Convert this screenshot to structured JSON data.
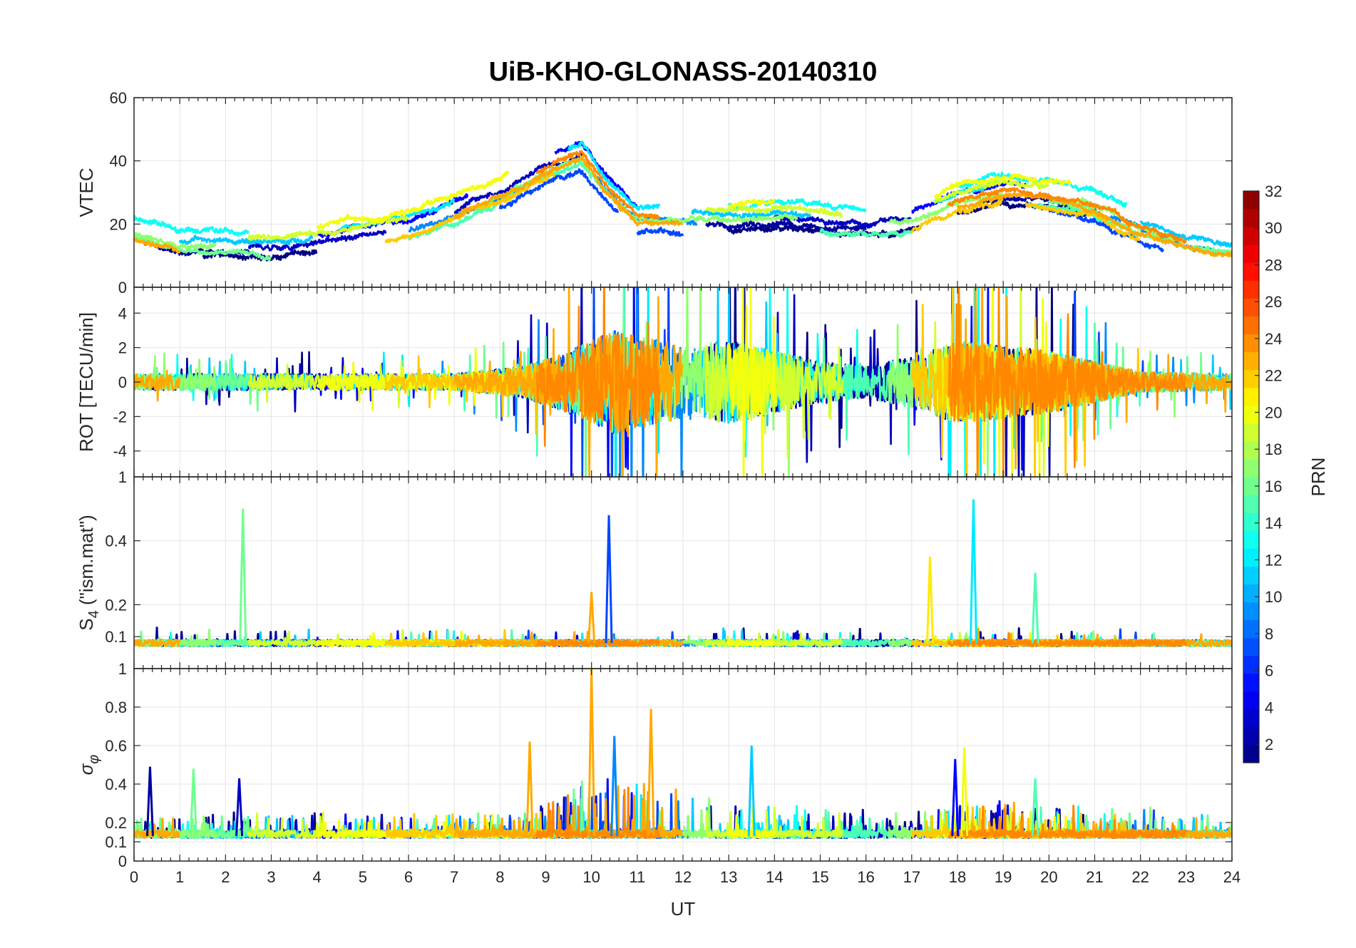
{
  "chart_data": {
    "type": "line",
    "title": "UiB-KHO-GLONASS-20140310",
    "xlabel": "UT",
    "xlim": [
      0,
      24
    ],
    "xticks": [
      "0",
      "1",
      "2",
      "3",
      "4",
      "5",
      "6",
      "7",
      "8",
      "9",
      "10",
      "11",
      "12",
      "13",
      "14",
      "15",
      "16",
      "17",
      "18",
      "19",
      "20",
      "21",
      "22",
      "23",
      "24"
    ],
    "grid": true,
    "panels": [
      {
        "ylabel": "VTEC",
        "ylim": [
          0,
          60
        ],
        "yticks": [
          {
            "v": 20,
            "label": "20"
          },
          {
            "v": 40,
            "label": "40"
          },
          {
            "v": 60,
            "label": "60"
          }
        ],
        "base": [
          [
            0,
            17
          ],
          [
            1,
            13
          ],
          [
            2,
            13
          ],
          [
            3,
            12
          ],
          [
            4,
            14
          ],
          [
            5,
            16
          ],
          [
            6,
            19
          ],
          [
            7,
            24
          ],
          [
            8,
            30
          ],
          [
            9,
            38
          ],
          [
            9.8,
            42
          ],
          [
            10.3,
            32
          ],
          [
            11,
            22
          ],
          [
            12,
            22
          ],
          [
            13,
            21
          ],
          [
            14,
            22
          ],
          [
            15,
            21
          ],
          [
            16,
            20
          ],
          [
            17,
            21
          ],
          [
            18,
            27
          ],
          [
            19,
            30
          ],
          [
            20,
            29
          ],
          [
            21,
            26
          ],
          [
            22,
            19
          ],
          [
            23,
            14
          ],
          [
            24,
            12
          ]
        ],
        "noise": 1.2
      },
      {
        "ylabel": "ROT [TECU/min]",
        "ylim": [
          -5.5,
          5.5
        ],
        "yticks": [
          {
            "v": -4,
            "label": "-4"
          },
          {
            "v": -2,
            "label": "-2"
          },
          {
            "v": 0,
            "label": "0"
          },
          {
            "v": 2,
            "label": "2"
          },
          {
            "v": 4,
            "label": "4"
          }
        ],
        "top_label": "0",
        "base": [
          [
            0,
            0
          ],
          [
            24,
            0
          ]
        ],
        "envelope": [
          [
            0,
            0.8
          ],
          [
            7,
            0.8
          ],
          [
            8.5,
            1.5
          ],
          [
            9.5,
            3
          ],
          [
            10.5,
            5
          ],
          [
            12,
            3.5
          ],
          [
            13,
            4
          ],
          [
            14,
            3
          ],
          [
            15,
            2
          ],
          [
            16,
            1.5
          ],
          [
            17,
            2.5
          ],
          [
            18,
            4
          ],
          [
            19,
            3.5
          ],
          [
            20,
            3
          ],
          [
            21,
            2
          ],
          [
            22,
            1
          ],
          [
            24,
            0.8
          ]
        ]
      },
      {
        "ylabel": "S4 (\"ism.mat\")",
        "ylim": [
          0,
          0.6
        ],
        "yticks": [
          {
            "v": 0.1,
            "label": "0.1"
          },
          {
            "v": 0.2,
            "label": "0.2"
          },
          {
            "v": 0.4,
            "label": "0.4"
          }
        ],
        "top_label": "1",
        "base": [
          [
            0,
            0.07
          ],
          [
            24,
            0.07
          ]
        ],
        "noise": 0.02,
        "spikes": [
          [
            2.38,
            0.5,
            16
          ],
          [
            10.38,
            0.48,
            7
          ],
          [
            18.35,
            0.53,
            12
          ],
          [
            17.4,
            0.35,
            21
          ],
          [
            10,
            0.24,
            23
          ],
          [
            19.7,
            0.3,
            15
          ]
        ]
      },
      {
        "ylabel": "σ_φ",
        "ylim": [
          0,
          1
        ],
        "yticks": [
          {
            "v": 0,
            "label": "0"
          },
          {
            "v": 0.1,
            "label": "0.1"
          },
          {
            "v": 0.2,
            "label": "0.2"
          },
          {
            "v": 0.4,
            "label": "0.4"
          },
          {
            "v": 0.6,
            "label": "0.6"
          },
          {
            "v": 0.8,
            "label": "0.8"
          }
        ],
        "top_label": "1",
        "base": [
          [
            0,
            0.12
          ],
          [
            24,
            0.12
          ]
        ],
        "noise": 0.04,
        "spikes": [
          [
            0.35,
            0.49,
            2
          ],
          [
            1.3,
            0.48,
            16
          ],
          [
            2.3,
            0.43,
            3
          ],
          [
            8.65,
            0.62,
            23
          ],
          [
            10,
            1.0,
            23
          ],
          [
            10.5,
            0.65,
            9
          ],
          [
            11.3,
            0.79,
            23
          ],
          [
            13.5,
            0.6,
            11
          ],
          [
            17.95,
            0.53,
            5
          ],
          [
            18.15,
            0.59,
            20
          ],
          [
            19.7,
            0.43,
            15
          ]
        ]
      }
    ],
    "colorbar": {
      "label": "PRN",
      "range": [
        1,
        32
      ],
      "ticks": [
        "2",
        "4",
        "6",
        "8",
        "10",
        "12",
        "14",
        "16",
        "18",
        "20",
        "22",
        "24",
        "26",
        "28",
        "30",
        "32"
      ],
      "colormap": "jet"
    },
    "series": [
      {
        "prn": 1,
        "ranges": [
          [
            1.5,
            4
          ],
          [
            13,
            17.2
          ],
          [
            18,
            21
          ]
        ]
      },
      {
        "prn": 2,
        "ranges": [
          [
            0.2,
            2.8
          ],
          [
            12.5,
            16
          ],
          [
            18.5,
            20.5
          ]
        ]
      },
      {
        "prn": 3,
        "ranges": [
          [
            2.5,
            5.5
          ],
          [
            7,
            9.8
          ],
          [
            14,
            17
          ]
        ]
      },
      {
        "prn": 5,
        "ranges": [
          [
            4,
            7.3
          ],
          [
            9.2,
            11
          ],
          [
            17,
            19.5
          ]
        ]
      },
      {
        "prn": 7,
        "ranges": [
          [
            8,
            10.6
          ],
          [
            11,
            12
          ],
          [
            20,
            22.5
          ]
        ]
      },
      {
        "prn": 9,
        "ranges": [
          [
            6,
            9
          ],
          [
            10,
            12.3
          ],
          [
            21,
            24
          ]
        ]
      },
      {
        "prn": 11,
        "ranges": [
          [
            1,
            3.9
          ],
          [
            12.2,
            14.8
          ],
          [
            22,
            24
          ]
        ]
      },
      {
        "prn": 12,
        "ranges": [
          [
            4.5,
            7
          ],
          [
            9.5,
            11.5
          ],
          [
            17.5,
            19
          ]
        ]
      },
      {
        "prn": 13,
        "ranges": [
          [
            0,
            2.5
          ],
          [
            13,
            16
          ],
          [
            18,
            21.7
          ]
        ]
      },
      {
        "prn": 15,
        "ranges": [
          [
            6,
            10
          ],
          [
            15,
            17
          ],
          [
            19.5,
            22
          ]
        ]
      },
      {
        "prn": 16,
        "ranges": [
          [
            0,
            3
          ],
          [
            7.5,
            11
          ],
          [
            20,
            24
          ]
        ]
      },
      {
        "prn": 17,
        "ranges": [
          [
            0,
            1.8
          ],
          [
            11,
            14.5
          ],
          [
            16.5,
            19
          ],
          [
            20.5,
            22.8
          ]
        ]
      },
      {
        "prn": 19,
        "ranges": [
          [
            2.5,
            6
          ],
          [
            12.5,
            15.5
          ],
          [
            17.5,
            20
          ]
        ]
      },
      {
        "prn": 20,
        "ranges": [
          [
            4,
            8.2
          ],
          [
            13,
            14
          ],
          [
            17.5,
            20.5
          ]
        ]
      },
      {
        "prn": 22,
        "ranges": [
          [
            5.5,
            9.2
          ],
          [
            17,
            19
          ],
          [
            19.5,
            22
          ]
        ]
      },
      {
        "prn": 23,
        "ranges": [
          [
            0,
            1
          ],
          [
            7,
            10.7
          ],
          [
            10.5,
            12
          ],
          [
            18,
            24
          ]
        ]
      },
      {
        "prn": 24,
        "ranges": [
          [
            8.8,
            11.5
          ],
          [
            17.8,
            21
          ],
          [
            21,
            23
          ]
        ]
      }
    ]
  }
}
